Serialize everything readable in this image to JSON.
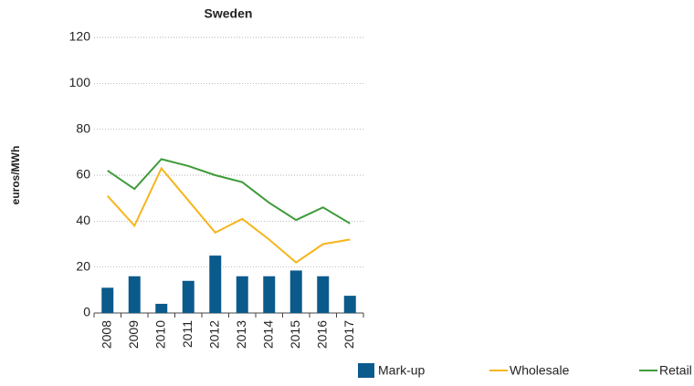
{
  "chart_data": {
    "type": "bar",
    "title": "Sweden",
    "y_label": "euros/MWh",
    "categories": [
      "2008",
      "2009",
      "2010",
      "2011",
      "2012",
      "2013",
      "2014",
      "2015",
      "2016",
      "2017"
    ],
    "series": [
      {
        "name": "Mark-up",
        "type": "bar",
        "color": "#0b5a8c",
        "values": [
          11,
          16,
          4,
          14,
          25,
          16,
          16,
          18.5,
          16,
          7.5
        ]
      },
      {
        "name": "Wholesale",
        "type": "line",
        "color": "#f6b51c",
        "values": [
          51,
          38,
          63,
          49,
          35,
          41,
          32,
          22,
          30,
          32
        ]
      },
      {
        "name": "Retail",
        "type": "line",
        "color": "#3e9b3a",
        "values": [
          62,
          54,
          67,
          64,
          60,
          57,
          48,
          40.5,
          46,
          39
        ]
      }
    ],
    "ylim": [
      0,
      120
    ],
    "yticks": [
      0,
      20,
      40,
      60,
      80,
      100,
      120
    ],
    "grid": true,
    "legend": "bottom"
  }
}
